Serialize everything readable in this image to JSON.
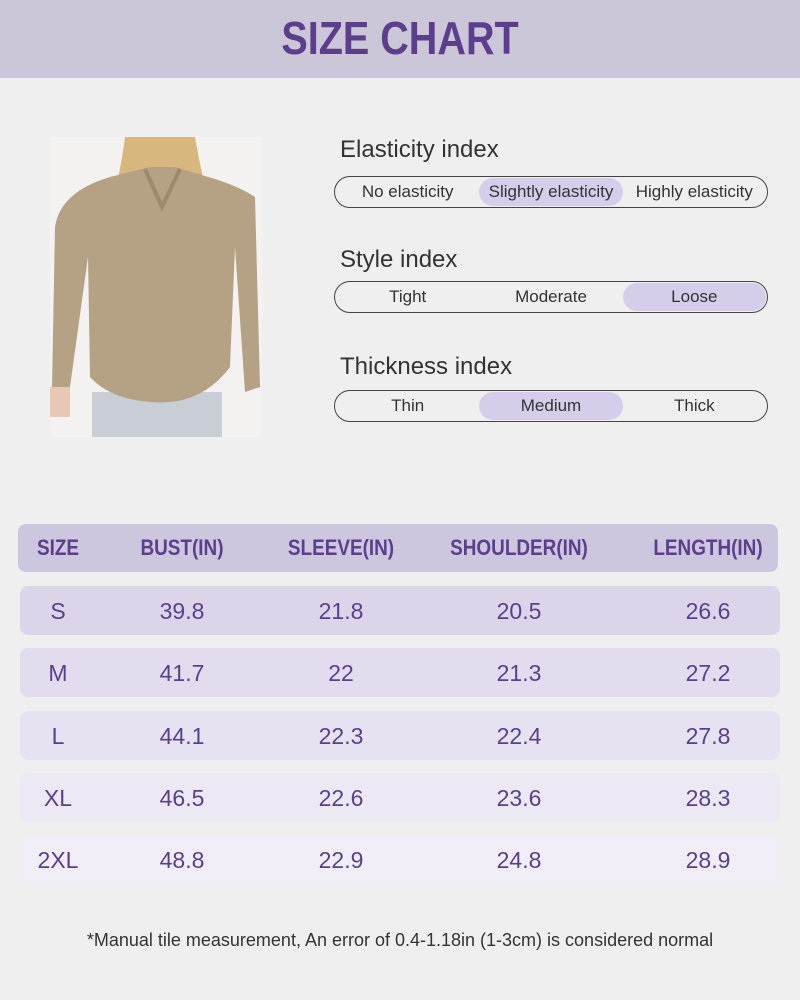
{
  "header": {
    "title": "SIZE CHART"
  },
  "indices": [
    {
      "label": "Elasticity index",
      "options": [
        "No elasticity",
        "Slightly elasticity",
        "Highly elasticity"
      ],
      "selected": 1
    },
    {
      "label": "Style index",
      "options": [
        "Tight",
        "Moderate",
        "Loose"
      ],
      "selected": 2
    },
    {
      "label": "Thickness index",
      "options": [
        "Thin",
        "Medium",
        "Thick"
      ],
      "selected": 1
    }
  ],
  "table": {
    "headers": [
      "SIZE",
      "BUST(IN)",
      "SLEEVE(IN)",
      "SHOULDER(IN)",
      "LENGTH(IN)"
    ],
    "rows": [
      [
        "S",
        39.8,
        21.8,
        20.5,
        26.6
      ],
      [
        "M",
        41.7,
        22,
        21.3,
        27.2
      ],
      [
        "L",
        44.1,
        22.3,
        22.4,
        27.8
      ],
      [
        "XL",
        46.5,
        22.6,
        23.6,
        28.3
      ],
      [
        "2XL",
        48.8,
        22.9,
        24.8,
        28.9
      ]
    ]
  },
  "footnote": "*Manual tile measurement, An error of 0.4-1.18in (1-3cm) is considered normal"
}
